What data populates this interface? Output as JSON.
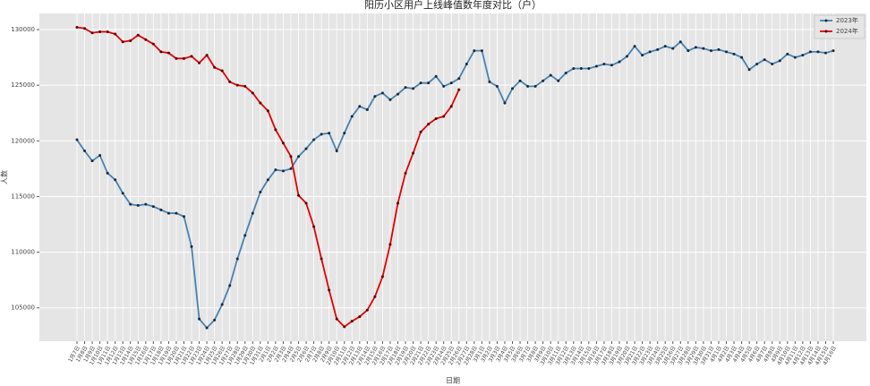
{
  "chart_data": {
    "type": "line",
    "title": "阳历小区用户上线峰值数年度对比（户）",
    "x_label": "日期",
    "y_label": "人数",
    "categories": [
      "1月7日",
      "1月8日",
      "1月9日",
      "1月10日",
      "1月11日",
      "1月12日",
      "1月13日",
      "1月14日",
      "1月15日",
      "1月16日",
      "1月17日",
      "1月18日",
      "1月19日",
      "1月20日",
      "1月21日",
      "1月22日",
      "1月23日",
      "1月24日",
      "1月25日",
      "1月26日",
      "1月27日",
      "1月28日",
      "1月29日",
      "1月30日",
      "1月31日",
      "2月1日",
      "2月2日",
      "2月3日",
      "2月4日",
      "2月5日",
      "2月6日",
      "2月7日",
      "2月8日",
      "2月9日",
      "2月10日",
      "2月11日",
      "2月12日",
      "2月13日",
      "2月14日",
      "2月15日",
      "2月16日",
      "2月17日",
      "2月18日",
      "2月19日",
      "2月20日",
      "2月21日",
      "2月22日",
      "2月23日",
      "2月24日",
      "2月25日",
      "2月26日",
      "2月27日",
      "2月28日",
      "3月1日",
      "3月2日",
      "3月3日",
      "3月4日",
      "3月5日",
      "3月6日",
      "3月7日",
      "3月8日",
      "3月9日",
      "3月10日",
      "3月11日",
      "3月12日",
      "3月13日",
      "3月14日",
      "3月15日",
      "3月16日",
      "3月17日",
      "3月18日",
      "3月19日",
      "3月20日",
      "3月21日",
      "3月22日",
      "3月23日",
      "3月24日",
      "3月25日",
      "3月26日",
      "3月27日",
      "3月28日",
      "3月29日",
      "3月30日",
      "3月31日",
      "4月1日",
      "4月2日",
      "4月3日",
      "4月4日",
      "4月5日",
      "4月6日",
      "4月7日",
      "4月8日",
      "4月9日",
      "4月10日",
      "4月11日",
      "4月12日",
      "4月13日",
      "4月14日",
      "4月15日",
      "4月16日"
    ],
    "series": [
      {
        "name": "2023年",
        "color": "#4682b4",
        "marker_color": "#1a2a3a",
        "values": [
          120100,
          119100,
          118200,
          118700,
          117100,
          116500,
          115300,
          114300,
          114200,
          114300,
          114100,
          113800,
          113500,
          113500,
          113200,
          110500,
          104000,
          103200,
          103900,
          105300,
          107000,
          109400,
          111500,
          113500,
          115400,
          116500,
          117400,
          117300,
          117500,
          118600,
          119300,
          120100,
          120600,
          120700,
          119100,
          120700,
          122200,
          123100,
          122800,
          124000,
          124300,
          123700,
          124200,
          124800,
          124700,
          125200,
          125200,
          125800,
          124900,
          125200,
          125600,
          126900,
          128100,
          128100,
          125300,
          124900,
          123400,
          124700,
          125400,
          124900,
          124900,
          125400,
          125900,
          125400,
          126100,
          126500,
          126500,
          126500,
          126700,
          126900,
          126800,
          127100,
          127600,
          128500,
          127700,
          128000,
          128200,
          128500,
          128300,
          128900,
          128100,
          128400,
          128300,
          128100,
          128200,
          128000,
          127800,
          127500,
          126400,
          126900,
          127300,
          126900,
          127200,
          127800,
          127500,
          127700,
          128000,
          128000,
          127900,
          128100
        ]
      },
      {
        "name": "2024年",
        "color": "#e00000",
        "marker_color": "#5a0000",
        "values": [
          130200,
          130100,
          129700,
          129800,
          129800,
          129600,
          128900,
          129000,
          129500,
          129100,
          128700,
          128000,
          127900,
          127400,
          127400,
          127600,
          127000,
          127700,
          126600,
          126300,
          125300,
          125000,
          124900,
          124300,
          123400,
          122700,
          121000,
          119800,
          118600,
          115100,
          114400,
          112300,
          109400,
          106600,
          104000,
          103300,
          103800,
          104200,
          104800,
          106000,
          107800,
          110700,
          114400,
          117100,
          118900,
          120800,
          121500,
          122000,
          122200,
          123100,
          124600,
          null,
          null,
          null,
          null,
          null,
          null,
          null,
          null,
          null,
          null,
          null,
          null,
          null,
          null,
          null,
          null,
          null,
          null,
          null,
          null,
          null,
          null,
          null,
          null,
          null,
          null,
          null,
          null,
          null,
          null,
          null,
          null,
          null,
          null,
          null,
          null,
          null,
          null,
          null,
          null,
          null,
          null,
          null,
          null,
          null,
          null,
          null,
          null,
          null
        ]
      }
    ],
    "ylim": [
      102000,
      131450
    ],
    "yticks": [
      105000,
      110000,
      115000,
      120000,
      125000,
      130000
    ],
    "grid": true,
    "legend": "upper right",
    "background": "#e5e5e5"
  }
}
